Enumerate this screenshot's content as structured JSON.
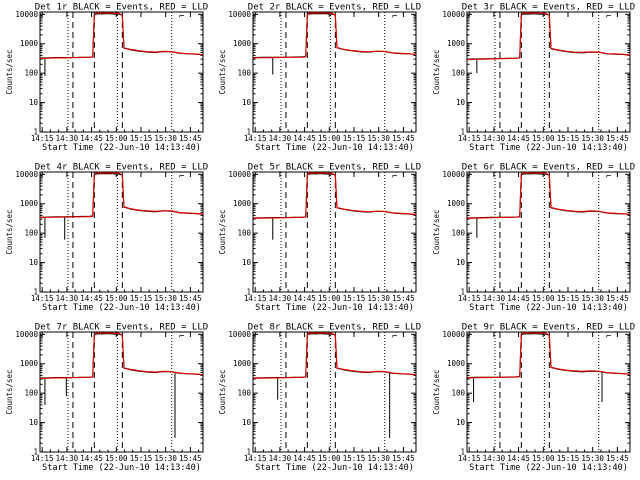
{
  "chart_data": {
    "type": "line",
    "layout": "3x3 grid of small multiples",
    "yscale": "log",
    "ylim": [
      1,
      12000
    ],
    "yticks": [
      "1",
      "10",
      "100",
      "1000",
      "10000"
    ],
    "ylabel": "Counts/sec",
    "xlabel": "Start Time (22-Jun-10 14:13:40)",
    "xticks": [
      "14:15",
      "14:30",
      "14:45",
      "15:00",
      "15:15",
      "15:30",
      "15:45"
    ],
    "xlim_minutes_after_start": [
      0,
      99
    ],
    "xtick_minutes_after_start": [
      1.33,
      16.33,
      31.33,
      46.33,
      61.33,
      76.33,
      91.33
    ],
    "dashed_lines_minutes": [
      20,
      33,
      50
    ],
    "dotted_lines_minutes": [
      17,
      47,
      80
    ],
    "corner_mark": "⌐",
    "series_legend": "BLACK = Events, RED = LLD",
    "panels": [
      {
        "title": "Det 1r BLACK = Events, RED = LLD",
        "x": [
          0,
          5,
          10,
          15,
          20,
          25,
          30,
          32,
          33,
          34,
          36,
          38,
          40,
          42,
          44,
          46,
          48,
          50,
          51,
          52,
          55,
          60,
          65,
          70,
          75,
          80,
          85,
          90,
          95,
          99
        ],
        "events": [
          330,
          335,
          340,
          340,
          340,
          345,
          350,
          360,
          9800,
          10200,
          10400,
          10300,
          10500,
          10400,
          10300,
          10200,
          10100,
          9500,
          700,
          690,
          620,
          560,
          520,
          500,
          540,
          530,
          470,
          450,
          440,
          420
        ],
        "lld": [
          320,
          325,
          330,
          330,
          335,
          340,
          345,
          355,
          9600,
          11000,
          11200,
          11000,
          11100,
          11200,
          11000,
          10900,
          10800,
          9300,
          720,
          700,
          640,
          580,
          540,
          520,
          550,
          540,
          480,
          460,
          445,
          425
        ],
        "dip_events": [
          [
            3,
            80
          ]
        ]
      },
      {
        "title": "Det 2r BLACK = Events, RED = LLD",
        "x": [
          0,
          5,
          10,
          15,
          20,
          25,
          30,
          32,
          33,
          34,
          36,
          38,
          40,
          42,
          44,
          46,
          48,
          50,
          51,
          52,
          55,
          60,
          65,
          70,
          75,
          80,
          85,
          90,
          95,
          99
        ],
        "events": [
          340,
          345,
          345,
          350,
          350,
          355,
          360,
          370,
          9900,
          10300,
          10500,
          10400,
          10600,
          10500,
          10400,
          10300,
          10100,
          9600,
          720,
          700,
          630,
          570,
          530,
          510,
          550,
          540,
          480,
          460,
          450,
          430
        ],
        "lld": [
          330,
          335,
          335,
          340,
          345,
          345,
          350,
          360,
          9700,
          11100,
          11300,
          11100,
          11200,
          11300,
          11100,
          11000,
          10900,
          9400,
          740,
          720,
          650,
          590,
          550,
          530,
          560,
          550,
          490,
          470,
          455,
          435
        ],
        "dip_events": [
          [
            12,
            90
          ]
        ]
      },
      {
        "title": "Det 3r BLACK = Events, RED = LLD",
        "x": [
          0,
          5,
          10,
          15,
          20,
          25,
          30,
          32,
          33,
          34,
          36,
          38,
          40,
          42,
          44,
          46,
          48,
          50,
          51,
          52,
          55,
          60,
          65,
          70,
          75,
          80,
          85,
          90,
          95,
          99
        ],
        "events": [
          300,
          305,
          310,
          310,
          315,
          320,
          325,
          335,
          9600,
          10100,
          10300,
          10200,
          10400,
          10300,
          10200,
          10100,
          10000,
          9400,
          680,
          660,
          600,
          540,
          500,
          490,
          520,
          510,
          450,
          440,
          430,
          410
        ],
        "lld": [
          290,
          295,
          300,
          305,
          310,
          315,
          320,
          330,
          9400,
          11000,
          11200,
          10900,
          11000,
          11100,
          10900,
          10800,
          10700,
          9200,
          700,
          680,
          620,
          560,
          520,
          510,
          530,
          520,
          460,
          450,
          435,
          415
        ],
        "dip_events": [
          [
            6,
            100
          ]
        ]
      },
      {
        "title": "Det 4r BLACK = Events, RED = LLD",
        "x": [
          0,
          5,
          10,
          15,
          20,
          25,
          30,
          32,
          33,
          34,
          36,
          38,
          40,
          42,
          44,
          46,
          48,
          50,
          51,
          52,
          55,
          60,
          65,
          70,
          75,
          80,
          85,
          90,
          95,
          99
        ],
        "events": [
          350,
          355,
          360,
          360,
          365,
          370,
          375,
          385,
          9900,
          10300,
          10500,
          10400,
          10600,
          10500,
          10400,
          10300,
          10100,
          9600,
          760,
          740,
          660,
          590,
          550,
          530,
          570,
          560,
          490,
          470,
          460,
          440
        ],
        "lld": [
          340,
          345,
          350,
          355,
          360,
          360,
          365,
          375,
          9700,
          11100,
          11300,
          11100,
          11200,
          11300,
          11100,
          11000,
          10900,
          9400,
          780,
          760,
          680,
          610,
          570,
          550,
          580,
          570,
          500,
          480,
          465,
          445
        ],
        "dip_events": [
          [
            3,
            70
          ],
          [
            15,
            60
          ]
        ]
      },
      {
        "title": "Det 5r BLACK = Events, RED = LLD",
        "x": [
          0,
          5,
          10,
          15,
          20,
          25,
          30,
          32,
          33,
          34,
          36,
          38,
          40,
          42,
          44,
          46,
          48,
          50,
          51,
          52,
          55,
          60,
          65,
          70,
          75,
          80,
          85,
          90,
          95,
          99
        ],
        "events": [
          330,
          335,
          340,
          340,
          340,
          345,
          350,
          360,
          9800,
          10200,
          10400,
          10300,
          10500,
          10400,
          10300,
          10200,
          10100,
          9500,
          720,
          700,
          640,
          580,
          540,
          510,
          550,
          540,
          480,
          460,
          445,
          425
        ],
        "lld": [
          320,
          325,
          330,
          330,
          335,
          340,
          345,
          355,
          9600,
          11000,
          11200,
          11000,
          11100,
          11200,
          11000,
          10900,
          10800,
          9300,
          740,
          720,
          660,
          600,
          560,
          530,
          560,
          550,
          490,
          470,
          450,
          430
        ],
        "dip_events": [
          [
            12,
            60
          ]
        ]
      },
      {
        "title": "Det 6r BLACK = Events, RED = LLD",
        "x": [
          0,
          5,
          10,
          15,
          20,
          25,
          30,
          32,
          33,
          34,
          36,
          38,
          40,
          42,
          44,
          46,
          48,
          50,
          51,
          52,
          55,
          60,
          65,
          70,
          75,
          80,
          85,
          90,
          95,
          99
        ],
        "events": [
          330,
          335,
          340,
          345,
          345,
          350,
          355,
          365,
          9800,
          10200,
          10400,
          10300,
          10500,
          10400,
          10300,
          10200,
          10100,
          9500,
          730,
          710,
          640,
          580,
          540,
          520,
          560,
          550,
          480,
          460,
          450,
          430
        ],
        "lld": [
          320,
          325,
          330,
          335,
          340,
          345,
          350,
          360,
          9600,
          11000,
          11200,
          11000,
          11100,
          11200,
          11000,
          10900,
          10800,
          9300,
          750,
          730,
          660,
          600,
          560,
          540,
          570,
          560,
          490,
          470,
          455,
          435
        ],
        "dip_events": [
          [
            6,
            70
          ]
        ]
      },
      {
        "title": "Det 7r BLACK = Events, RED = LLD",
        "x": [
          0,
          5,
          10,
          15,
          20,
          25,
          30,
          32,
          33,
          34,
          36,
          38,
          40,
          42,
          44,
          46,
          48,
          50,
          51,
          52,
          55,
          60,
          65,
          70,
          75,
          80,
          85,
          90,
          95,
          99
        ],
        "events": [
          330,
          335,
          340,
          340,
          340,
          345,
          350,
          360,
          9800,
          10200,
          10400,
          10300,
          10500,
          10400,
          10300,
          10200,
          10100,
          9500,
          700,
          690,
          620,
          560,
          520,
          500,
          540,
          530,
          470,
          450,
          440,
          420
        ],
        "lld": [
          320,
          325,
          330,
          330,
          335,
          340,
          345,
          355,
          9600,
          11000,
          11200,
          11000,
          11100,
          11200,
          11000,
          10900,
          10800,
          9300,
          720,
          700,
          640,
          580,
          540,
          520,
          550,
          540,
          480,
          460,
          445,
          425
        ],
        "dip_events": [
          [
            3,
            40
          ],
          [
            16,
            80
          ],
          [
            82,
            3
          ]
        ]
      },
      {
        "title": "Det 8r BLACK = Events, RED = LLD",
        "x": [
          0,
          5,
          10,
          15,
          20,
          25,
          30,
          32,
          33,
          34,
          36,
          38,
          40,
          42,
          44,
          46,
          48,
          50,
          51,
          52,
          55,
          60,
          65,
          70,
          75,
          80,
          85,
          90,
          95,
          99
        ],
        "events": [
          330,
          335,
          340,
          340,
          340,
          345,
          350,
          360,
          9800,
          10200,
          10400,
          10300,
          10500,
          10400,
          10300,
          10200,
          10100,
          9500,
          700,
          690,
          620,
          560,
          520,
          500,
          540,
          530,
          470,
          450,
          440,
          420
        ],
        "lld": [
          320,
          325,
          330,
          330,
          335,
          340,
          345,
          355,
          9600,
          11000,
          11200,
          11000,
          11100,
          11200,
          11000,
          10900,
          10800,
          9300,
          720,
          700,
          640,
          580,
          540,
          520,
          550,
          540,
          480,
          460,
          445,
          425
        ],
        "dip_events": [
          [
            15,
            60
          ],
          [
            83,
            3
          ]
        ]
      },
      {
        "title": "Det 9r BLACK = Events, RED = LLD",
        "x": [
          0,
          5,
          10,
          15,
          20,
          25,
          30,
          32,
          33,
          34,
          36,
          38,
          40,
          42,
          44,
          46,
          48,
          50,
          51,
          52,
          55,
          60,
          65,
          70,
          75,
          80,
          85,
          90,
          95,
          99
        ],
        "events": [
          340,
          345,
          350,
          350,
          350,
          355,
          360,
          370,
          9800,
          10200,
          10400,
          10300,
          10500,
          10400,
          10300,
          10200,
          10100,
          9500,
          740,
          720,
          650,
          590,
          550,
          530,
          560,
          550,
          490,
          470,
          455,
          435
        ],
        "lld": [
          330,
          335,
          340,
          340,
          345,
          350,
          355,
          365,
          9600,
          11000,
          11200,
          11000,
          11100,
          11200,
          11000,
          10900,
          10800,
          9300,
          760,
          740,
          670,
          610,
          570,
          550,
          570,
          560,
          500,
          480,
          460,
          440
        ],
        "dip_events": [
          [
            4,
            50
          ],
          [
            82,
            50
          ]
        ]
      }
    ]
  }
}
